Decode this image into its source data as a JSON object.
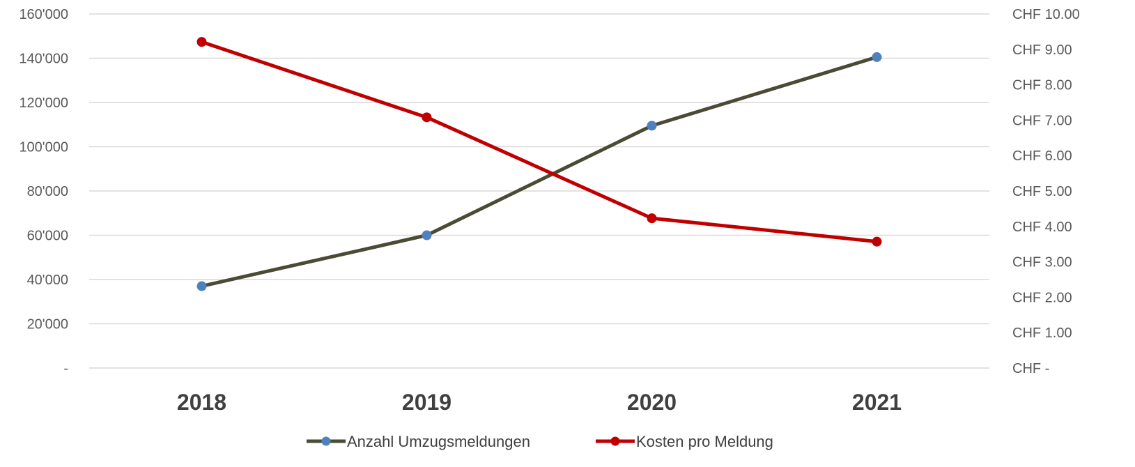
{
  "chart_data": {
    "type": "line",
    "title": "",
    "xlabel": "",
    "ylabel": "",
    "y2label": "",
    "categories": [
      "2018",
      "2019",
      "2020",
      "2021"
    ],
    "y_axis": {
      "range": [
        0,
        160000
      ],
      "ticks": [
        0,
        20000,
        40000,
        60000,
        80000,
        100000,
        120000,
        140000,
        160000
      ],
      "tick_labels": [
        "-",
        "20'000",
        "40'000",
        "60'000",
        "80'000",
        "100'000",
        "120'000",
        "140'000",
        "160'000"
      ]
    },
    "y2_axis": {
      "range": [
        0,
        10
      ],
      "ticks": [
        0,
        1,
        2,
        3,
        4,
        5,
        6,
        7,
        8,
        9,
        10
      ],
      "tick_labels": [
        "CHF -",
        "CHF 1.00",
        "CHF 2.00",
        "CHF 3.00",
        "CHF 4.00",
        "CHF 5.00",
        "CHF 6.00",
        "CHF 7.00",
        "CHF 8.00",
        "CHF 9.00",
        "CHF 10.00"
      ]
    },
    "grid": true,
    "legend_position": "bottom",
    "series": [
      {
        "name": "Anzahl Umzugsmeldungen",
        "axis": "left",
        "values": [
          37000,
          60000,
          109500,
          140500
        ],
        "line_color": "#4a4a35",
        "marker_color": "#4f81bd"
      },
      {
        "name": "Kosten pro Meldung",
        "axis": "right",
        "values": [
          9.21,
          7.08,
          4.23,
          3.57
        ],
        "line_color": "#c00000",
        "marker_color": "#c00000"
      }
    ]
  }
}
